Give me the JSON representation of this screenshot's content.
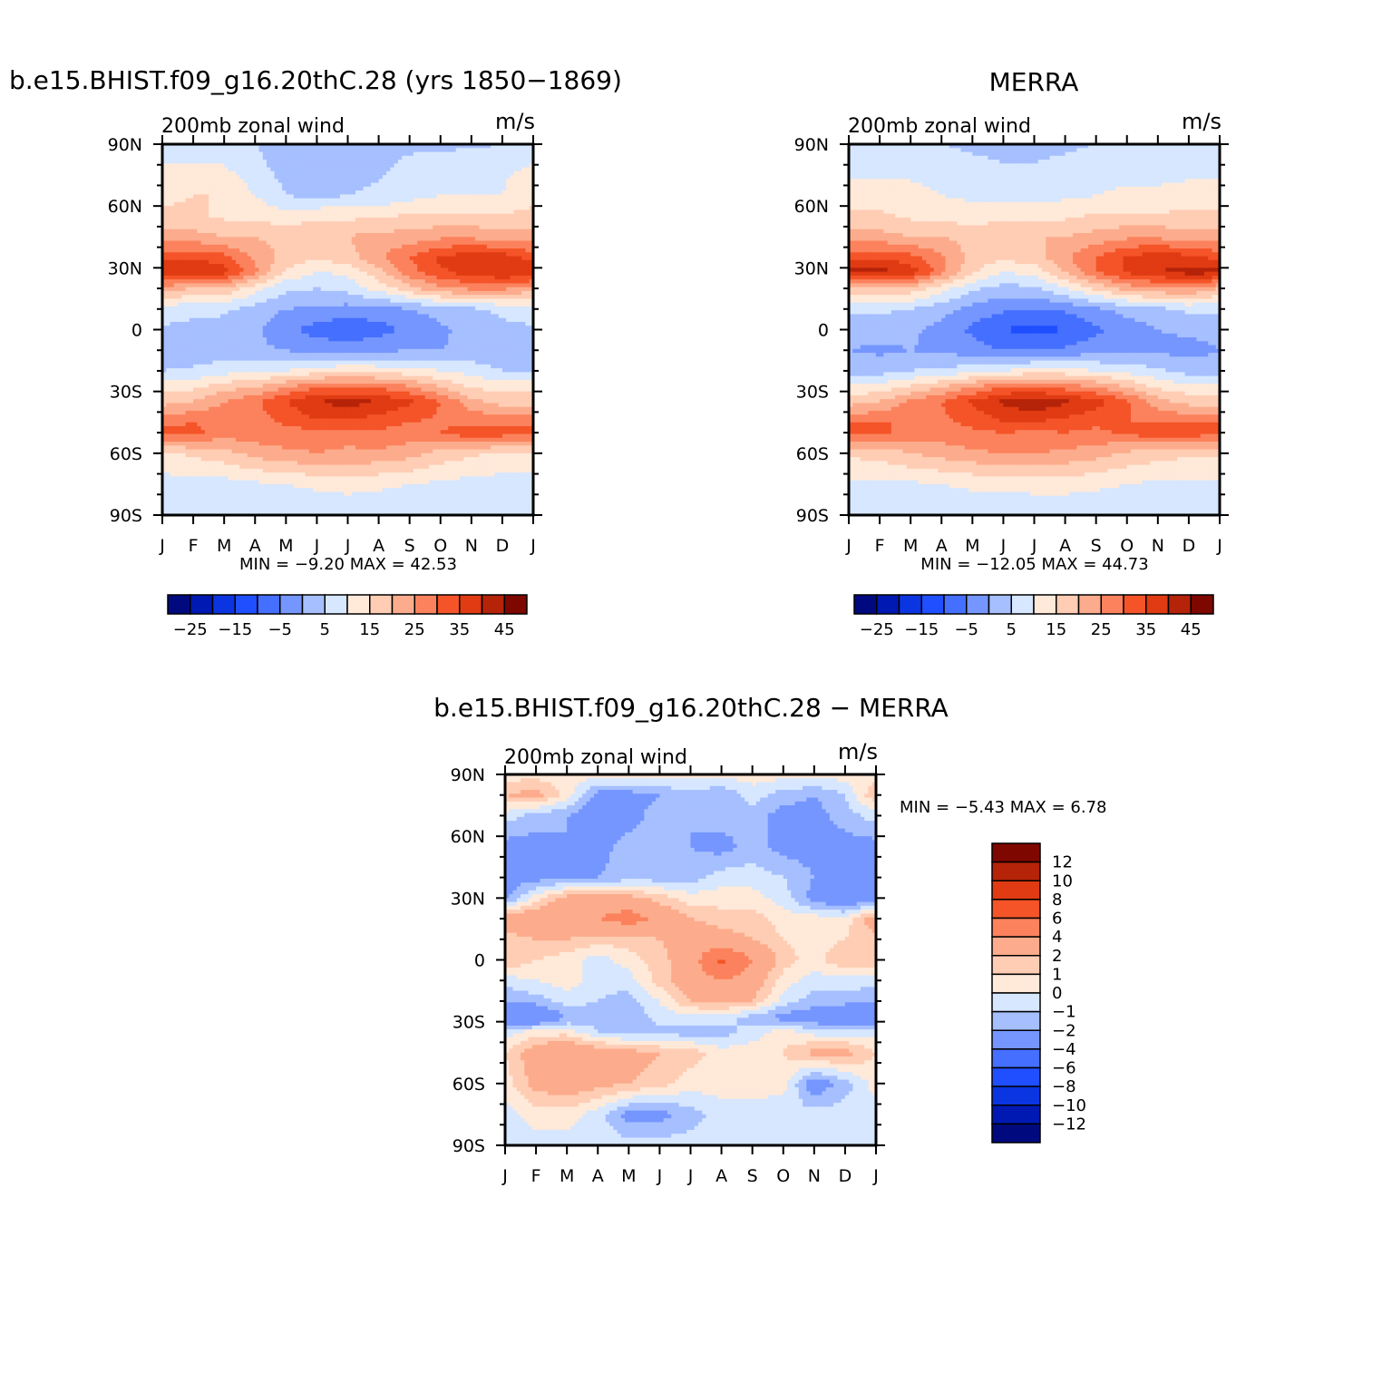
{
  "colors": {
    "main_levels": [
      "#000a7e",
      "#0019b2",
      "#0a35e0",
      "#1f4fff",
      "#456fff",
      "#7596ff",
      "#a6bfff",
      "#d6e7ff",
      "#ffe9d9",
      "#ffcdb4",
      "#fcac8c",
      "#fb825d",
      "#f45428",
      "#e03b12",
      "#b52309",
      "#7e0700"
    ],
    "diff_levels": [
      "#000a7e",
      "#0019b2",
      "#0a35e0",
      "#1f4fff",
      "#456fff",
      "#7596ff",
      "#a6bfff",
      "#d6e7ff",
      "#ffe9d9",
      "#ffcdb4",
      "#fcac8c",
      "#fb825d",
      "#f45428",
      "#e03b12",
      "#b52309",
      "#7e0700"
    ]
  },
  "chart_data": [
    {
      "type": "heatmap",
      "title": "b.e15.BHIST.f09_g16.20thC.28 (yrs 1850-1869)",
      "left_string": "200mb zonal wind",
      "right_string": "m/s",
      "x_tick_labels": [
        "J",
        "F",
        "M",
        "A",
        "M",
        "J",
        "J",
        "A",
        "S",
        "O",
        "N",
        "D",
        "J"
      ],
      "y_tick_labels": [
        "90N",
        "60N",
        "30N",
        "0",
        "30S",
        "60S",
        "90S"
      ],
      "min_max": "MIN =   -9.20 MAX =   42.53",
      "levels": [
        -30,
        -25,
        -20,
        -15,
        -10,
        -5,
        0,
        5,
        10,
        15,
        20,
        25,
        30,
        35,
        40,
        45
      ],
      "colorbar_labels": [
        "-25",
        "-15",
        "-5",
        "5",
        "15",
        "25",
        "35",
        "45"
      ],
      "lat_nodes": [
        -90,
        -75,
        -60,
        -50,
        -45,
        -35,
        -28,
        -20,
        -10,
        0,
        10,
        20,
        28,
        35,
        45,
        55,
        65,
        80,
        90
      ],
      "values": [
        [
          6,
          6,
          6,
          6,
          6,
          6,
          6,
          6,
          6,
          6,
          6,
          6
        ],
        [
          8,
          8,
          8,
          9,
          10,
          11,
          12,
          11,
          10,
          9,
          8,
          8
        ],
        [
          14,
          16,
          18,
          22,
          24,
          25,
          24,
          24,
          22,
          18,
          16,
          14
        ],
        [
          32,
          31,
          28,
          28,
          28,
          28,
          27,
          29,
          28,
          30,
          34,
          33
        ],
        [
          29,
          30,
          29,
          28,
          31,
          34,
          34,
          32,
          30,
          29,
          29,
          29
        ],
        [
          18,
          20,
          25,
          29,
          35,
          40,
          42,
          40,
          36,
          30,
          22,
          18
        ],
        [
          14,
          14,
          18,
          20,
          25,
          30,
          30,
          29,
          26,
          20,
          14,
          14
        ],
        [
          5,
          6,
          8,
          8,
          10,
          12,
          14,
          13,
          12,
          10,
          8,
          5
        ],
        [
          2,
          1,
          2,
          1,
          0,
          -2,
          -2,
          -1,
          0,
          0,
          1,
          0
        ],
        [
          4,
          4,
          3,
          1,
          -4,
          -7,
          -9,
          -7,
          -4,
          -1,
          2,
          4
        ],
        [
          8,
          6,
          6,
          3,
          0,
          -1,
          -2,
          -2,
          0,
          2,
          4,
          6
        ],
        [
          22,
          20,
          19,
          12,
          6,
          5,
          7,
          12,
          18,
          24,
          26,
          26
        ],
        [
          40,
          41,
          37,
          26,
          14,
          10,
          11,
          18,
          28,
          34,
          38,
          40
        ],
        [
          33,
          34,
          32,
          24,
          18,
          16,
          18,
          24,
          30,
          36,
          38,
          38
        ],
        [
          22,
          22,
          20,
          20,
          18,
          20,
          20,
          22,
          22,
          24,
          24,
          22
        ],
        [
          16,
          16,
          14,
          14,
          12,
          14,
          14,
          14,
          16,
          16,
          16,
          16
        ],
        [
          14,
          15,
          15,
          10,
          5,
          4,
          5,
          6,
          8,
          10,
          10,
          10
        ],
        [
          10,
          10,
          10,
          6,
          3,
          2,
          3,
          4,
          6,
          7,
          8,
          9
        ],
        [
          6,
          6,
          6,
          5,
          4,
          3,
          3,
          3,
          4,
          4,
          4,
          5
        ]
      ]
    },
    {
      "type": "heatmap",
      "title": "MERRA",
      "left_string": "200mb zonal wind",
      "right_string": "m/s",
      "x_tick_labels": [
        "J",
        "F",
        "M",
        "A",
        "M",
        "J",
        "J",
        "A",
        "S",
        "O",
        "N",
        "D",
        "J"
      ],
      "y_tick_labels": [
        "90N",
        "60N",
        "30N",
        "0",
        "30S",
        "60S",
        "90S"
      ],
      "min_max": "MIN =  -12.05 MAX =   44.73",
      "levels": [
        -30,
        -25,
        -20,
        -15,
        -10,
        -5,
        0,
        5,
        10,
        15,
        20,
        25,
        30,
        35,
        40,
        45
      ],
      "colorbar_labels": [
        "-25",
        "-15",
        "-5",
        "5",
        "15",
        "25",
        "35",
        "45"
      ],
      "lat_nodes": [
        -90,
        -75,
        -60,
        -50,
        -45,
        -35,
        -28,
        -20,
        -10,
        0,
        10,
        20,
        28,
        35,
        45,
        55,
        65,
        80,
        90
      ],
      "values": [
        [
          6,
          6,
          6,
          6,
          6,
          6,
          6,
          6,
          6,
          6,
          6,
          6
        ],
        [
          9,
          9,
          9,
          10,
          11,
          11,
          12,
          12,
          11,
          10,
          9,
          9
        ],
        [
          16,
          17,
          20,
          22,
          24,
          25,
          25,
          24,
          22,
          19,
          17,
          16
        ],
        [
          32,
          31,
          28,
          28,
          29,
          30,
          29,
          30,
          29,
          31,
          34,
          33
        ],
        [
          30,
          30,
          30,
          29,
          31,
          35,
          35,
          33,
          31,
          30,
          30,
          30
        ],
        [
          18,
          20,
          26,
          30,
          36,
          41,
          44,
          41,
          37,
          31,
          22,
          18
        ],
        [
          12,
          12,
          16,
          20,
          25,
          30,
          30,
          28,
          25,
          20,
          14,
          12
        ],
        [
          3,
          3,
          5,
          6,
          8,
          10,
          12,
          12,
          10,
          8,
          6,
          3
        ],
        [
          0,
          -1,
          0,
          -1,
          -3,
          -5,
          -5,
          -4,
          -2,
          -1,
          -1,
          -2
        ],
        [
          2,
          2,
          1,
          -2,
          -6,
          -10,
          -12,
          -10,
          -6,
          -3,
          0,
          1
        ],
        [
          6,
          6,
          5,
          2,
          -2,
          -4,
          -5,
          -4,
          -1,
          2,
          4,
          6
        ],
        [
          20,
          19,
          18,
          12,
          6,
          3,
          4,
          10,
          16,
          22,
          24,
          25
        ],
        [
          42,
          42,
          38,
          27,
          16,
          10,
          12,
          20,
          30,
          36,
          40,
          42
        ],
        [
          33,
          34,
          32,
          26,
          18,
          16,
          18,
          24,
          30,
          36,
          38,
          37
        ],
        [
          22,
          22,
          20,
          20,
          18,
          20,
          20,
          20,
          22,
          24,
          24,
          22
        ],
        [
          16,
          16,
          14,
          14,
          12,
          14,
          14,
          14,
          16,
          16,
          16,
          16
        ],
        [
          12,
          12,
          12,
          10,
          9,
          8,
          8,
          9,
          10,
          11,
          11,
          12
        ],
        [
          8,
          8,
          8,
          7,
          6,
          5,
          5,
          6,
          7,
          8,
          8,
          8
        ],
        [
          6,
          6,
          6,
          5,
          4,
          4,
          4,
          4,
          5,
          5,
          5,
          6
        ]
      ]
    },
    {
      "type": "heatmap",
      "title": "b.e15.BHIST.f09_g16.20thC.28 - MERRA",
      "left_string": "200mb zonal wind",
      "right_string": "m/s",
      "x_tick_labels": [
        "J",
        "F",
        "M",
        "A",
        "M",
        "J",
        "J",
        "A",
        "S",
        "O",
        "N",
        "D",
        "J"
      ],
      "y_tick_labels": [
        "90N",
        "60N",
        "30N",
        "0",
        "30S",
        "60S",
        "90S"
      ],
      "min_max": "MIN =   -5.43 MAX =    6.78",
      "levels": [
        -14,
        -12,
        -10,
        -8,
        -6,
        -4,
        -2,
        -1,
        0,
        1,
        2,
        4,
        6,
        8,
        10,
        12
      ],
      "colorbar_labels": [
        "12",
        "10",
        "8",
        "6",
        "4",
        "2",
        "1",
        "0",
        "-1",
        "-2",
        "-4",
        "-6",
        "-8",
        "-10",
        "-12"
      ],
      "lat_nodes": [
        -90,
        -75,
        -60,
        -45,
        -35,
        -28,
        -20,
        -10,
        0,
        10,
        20,
        30,
        40,
        55,
        70,
        80,
        90
      ],
      "values": [
        [
          -0.5,
          -0.5,
          -0.5,
          -0.5,
          -0.5,
          -0.5,
          -0.5,
          -0.5,
          -0.5,
          -0.5,
          -0.5,
          -0.5
        ],
        [
          -0.5,
          0.5,
          0.5,
          -0.5,
          -2.5,
          -2.5,
          -1.5,
          -0.5,
          -0.5,
          -0.8,
          -0.5,
          -0.5
        ],
        [
          0.5,
          2.5,
          3,
          2.5,
          2,
          1.5,
          0.5,
          0.5,
          0.5,
          0.5,
          -3,
          -1.5
        ],
        [
          1,
          3,
          4,
          3,
          2.5,
          2,
          1.5,
          0.5,
          0.5,
          1,
          2.5,
          2.5
        ],
        [
          -0.5,
          0.5,
          0.5,
          -1,
          -1.5,
          -1.5,
          -1.5,
          -1.5,
          -0.5,
          0.5,
          -0.5,
          -0.5
        ],
        [
          -4,
          -4,
          -2,
          -1.5,
          -2,
          -0.5,
          -0.5,
          -0.5,
          -1.5,
          -2.5,
          -3,
          -4
        ],
        [
          -2,
          -1.5,
          -0.5,
          -1,
          -1.5,
          0,
          2,
          2.5,
          2,
          -0.5,
          -1.5,
          -1.5
        ],
        [
          -0.5,
          0,
          0.5,
          -0.5,
          -0.5,
          1.5,
          3,
          4,
          3,
          0.5,
          -0.5,
          -0.5
        ],
        [
          2,
          1,
          0.5,
          -0.5,
          0.5,
          1.5,
          3,
          6.5,
          4,
          1.5,
          0.5,
          2
        ],
        [
          1.5,
          2,
          2,
          1.5,
          1.5,
          2,
          3,
          2.5,
          2,
          1,
          0.5,
          1
        ],
        [
          3,
          3.5,
          4,
          4,
          5,
          3.5,
          2,
          1.5,
          1.5,
          0.5,
          0.5,
          0.5
        ],
        [
          -2.5,
          0.5,
          2.5,
          2.5,
          2.5,
          1.5,
          0.5,
          0.5,
          0.5,
          -0.5,
          -2.5,
          -4
        ],
        [
          -2.5,
          -2.5,
          -2.5,
          -2,
          -1.5,
          -1.5,
          -1.5,
          -0.5,
          -0.5,
          -1,
          -2,
          -2.5
        ],
        [
          -2.5,
          -2.5,
          -2,
          -2.5,
          -1.5,
          -2,
          -2,
          -2.5,
          -1.5,
          -2.5,
          -2.5,
          -2.5
        ],
        [
          -0.5,
          -1.5,
          -2,
          -3,
          -2.5,
          -1.5,
          -2,
          -1.5,
          -1.5,
          -2.5,
          -2.5,
          -1.5
        ],
        [
          2,
          2.5,
          0.5,
          -2.5,
          -2.5,
          -2,
          -1.5,
          -2,
          -0.5,
          -1.5,
          -2,
          -1
        ],
        [
          0.5,
          0.5,
          0.5,
          0.5,
          0.5,
          0.5,
          0.5,
          0.5,
          0.5,
          0.5,
          0.5,
          0.5
        ]
      ]
    }
  ]
}
